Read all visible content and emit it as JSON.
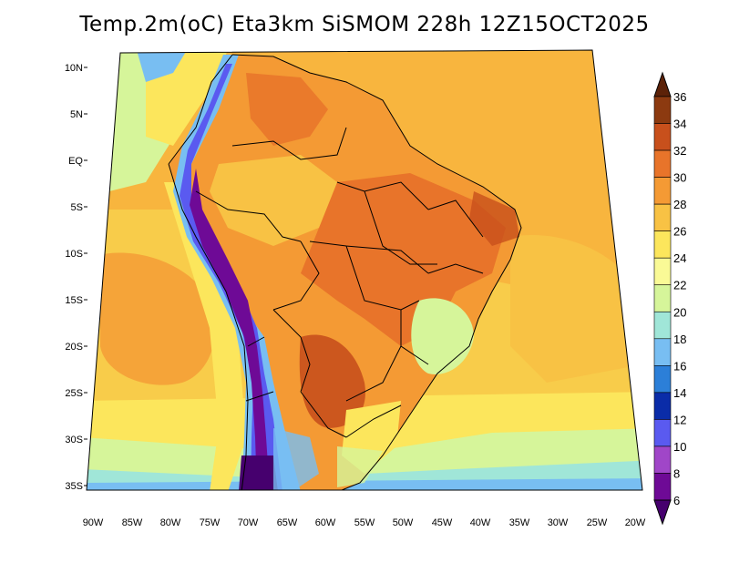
{
  "title": "Temp.2m(oC) Eta3km SiSMOM 228h 12Z15OCT2025",
  "lat_labels": [
    "10N",
    "5N",
    "EQ",
    "5S",
    "10S",
    "15S",
    "20S",
    "25S",
    "30S",
    "35S"
  ],
  "lon_labels": [
    "90W",
    "85W",
    "80W",
    "75W",
    "70W",
    "65W",
    "60W",
    "55W",
    "50W",
    "45W",
    "40W",
    "35W",
    "30W",
    "25W",
    "20W"
  ],
  "colorbar": {
    "labels": [
      "36",
      "34",
      "32",
      "30",
      "28",
      "26",
      "24",
      "22",
      "20",
      "18",
      "16",
      "14",
      "12",
      "10",
      "8",
      "6"
    ],
    "colors": [
      "#5c2208",
      "#8c3a10",
      "#c8501c",
      "#e8742a",
      "#f49a34",
      "#f8c244",
      "#fce65c",
      "#fafa96",
      "#d6f59a",
      "#a0e6d8",
      "#78bef2",
      "#2c7fd8",
      "#0a2ca8",
      "#5a5af0",
      "#a046c8",
      "#6e0a96",
      "#46006e"
    ],
    "units": "oC"
  },
  "colors": {
    "ocean_tropical": "#f8b03c",
    "ocean_warm": "#f8cc4a",
    "ocean_mid": "#fce65c",
    "ocean_cool": "#d6f59a",
    "ocean_cold": "#a0e6d8",
    "land_hot": "#e8742a",
    "land_warm": "#f49a34",
    "andes_cold": "#6e0a96",
    "andes_cool": "#5a5af0",
    "border": "#000000"
  }
}
